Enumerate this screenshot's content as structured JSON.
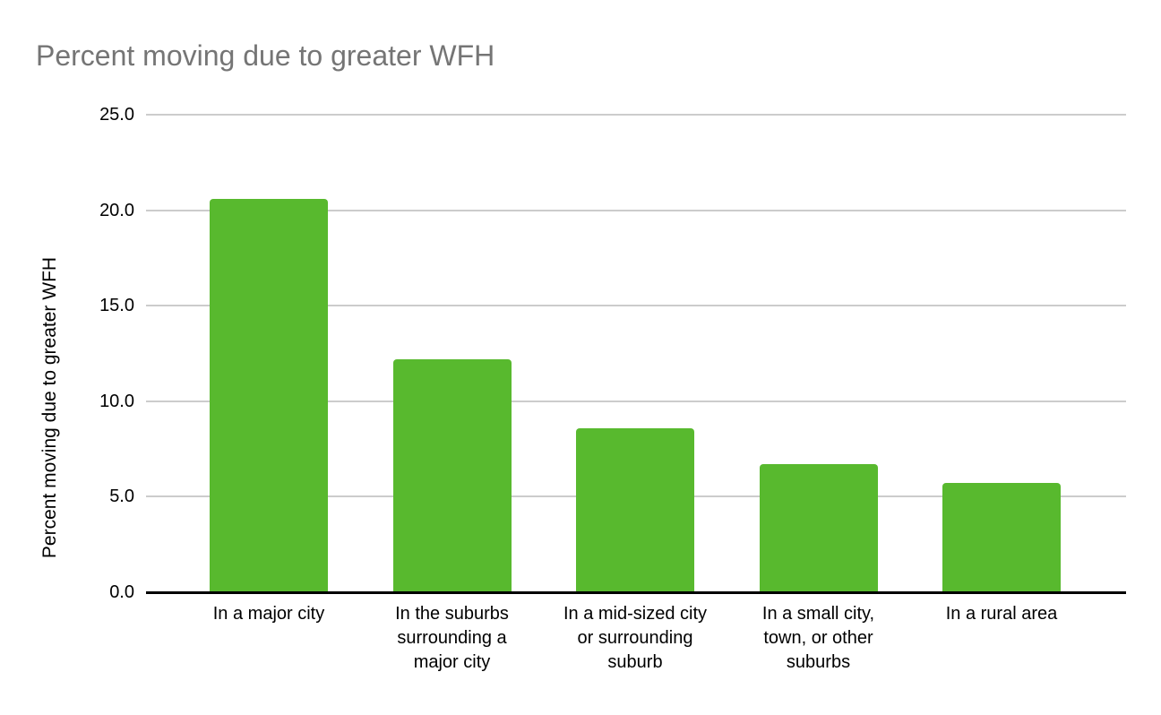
{
  "chart_data": {
    "type": "bar",
    "title": "Percent moving due to greater WFH",
    "ylabel": "Percent moving due to greater WFH",
    "xlabel": "",
    "categories": [
      "In a major city",
      "In the suburbs\nsurrounding a\nmajor city",
      "In a mid-sized city\nor surrounding\nsuburb",
      "In a small city,\ntown, or other\nsuburbs",
      "In a rural area"
    ],
    "values": [
      20.6,
      12.2,
      8.6,
      6.7,
      5.7
    ],
    "ylim": [
      0,
      25
    ],
    "yticks": [
      0,
      5,
      10,
      15,
      20,
      25
    ],
    "ytick_labels": [
      "0.0",
      "5.0",
      "10.0",
      "15.0",
      "20.0",
      "25.0"
    ],
    "grid": true,
    "legend": false,
    "colors": {
      "bar": "#58b92e",
      "title": "#757575",
      "axis_text": "#000000",
      "gridline": "#cccccc",
      "axis_line": "#000000",
      "background": "#ffffff"
    }
  }
}
